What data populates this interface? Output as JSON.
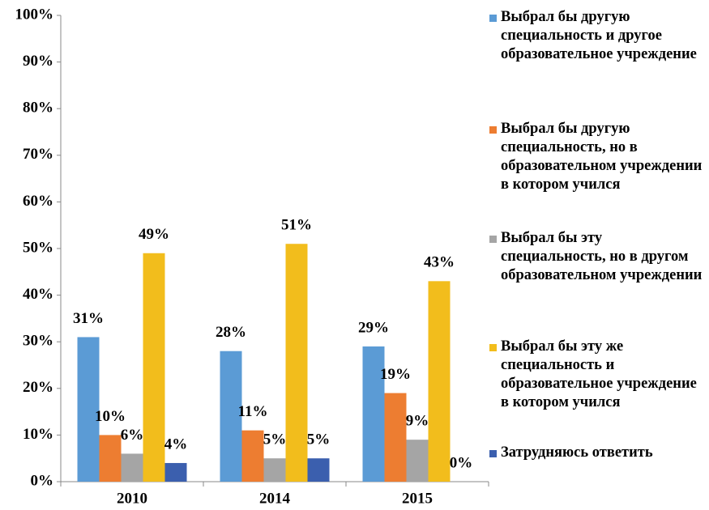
{
  "chart_data": {
    "type": "bar",
    "categories": [
      "2010",
      "2014",
      "2015"
    ],
    "series": [
      {
        "name": "Выбрал бы другую специальность и другое образовательное учреждение",
        "color": "#5b9bd5",
        "values": [
          31,
          28,
          29
        ],
        "value_labels": [
          "31%",
          "28%",
          "29%"
        ]
      },
      {
        "name": "Выбрал бы другую специальность, но в образовательном учреждении в котором учился",
        "color": "#ed7d31",
        "values": [
          10,
          11,
          19
        ],
        "value_labels": [
          "10%",
          "11%",
          "19%"
        ]
      },
      {
        "name": "Выбрал бы эту специальность, но в другом образовательном учреждении",
        "color": "#a5a5a5",
        "values": [
          6,
          5,
          9
        ],
        "value_labels": [
          "6%",
          "5%",
          "9%"
        ]
      },
      {
        "name": "Выбрал бы эту же специальность и образовательное учреждение в котором учился",
        "color": "#f2bd1c",
        "values": [
          49,
          51,
          43
        ],
        "value_labels": [
          "49%",
          "51%",
          "43%"
        ]
      },
      {
        "name": "Затрудняюсь ответить",
        "color": "#3b5fae",
        "values": [
          4,
          5,
          0
        ],
        "value_labels": [
          "4%",
          "5%",
          "0%"
        ]
      }
    ],
    "ylim": [
      0,
      100
    ],
    "yticks": [
      {
        "value": 0,
        "label": "0%"
      },
      {
        "value": 10,
        "label": "10%"
      },
      {
        "value": 20,
        "label": "20%"
      },
      {
        "value": 30,
        "label": "30%"
      },
      {
        "value": 40,
        "label": "40%"
      },
      {
        "value": 50,
        "label": "50%"
      },
      {
        "value": 60,
        "label": "60%"
      },
      {
        "value": 70,
        "label": "70%"
      },
      {
        "value": 80,
        "label": "80%"
      },
      {
        "value": 90,
        "label": "90%"
      },
      {
        "value": 100,
        "label": "100%"
      }
    ],
    "legend": "right"
  }
}
